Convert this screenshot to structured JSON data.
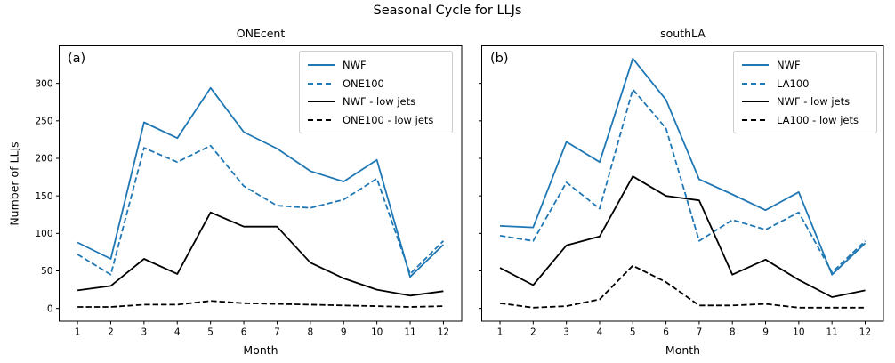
{
  "figure": {
    "title": "Seasonal Cycle for LLJs",
    "xlabel": "Month",
    "ylabel": "Number of LLJs"
  },
  "chart_data": [
    {
      "type": "line",
      "title": "ONEcent",
      "panel_label": "(a)",
      "xlabel": "Month",
      "ylabel": "Number of LLJs",
      "x": [
        1,
        2,
        3,
        4,
        5,
        6,
        7,
        8,
        9,
        10,
        11,
        12
      ],
      "xticks": [
        1,
        2,
        3,
        4,
        5,
        6,
        7,
        8,
        9,
        10,
        11,
        12
      ],
      "yticks": [
        0,
        50,
        100,
        150,
        200,
        250,
        300
      ],
      "xlim": [
        0.45,
        12.55
      ],
      "ylim": [
        -17,
        350
      ],
      "grid": false,
      "legend_position": "upper right",
      "series": [
        {
          "name": "NWF",
          "color": "#1f77b4",
          "style": "solid",
          "values": [
            88,
            66,
            248,
            227,
            294,
            235,
            213,
            183,
            169,
            198,
            42,
            85
          ]
        },
        {
          "name": "ONE100",
          "color": "#1f77b4",
          "style": "dashed",
          "values": [
            72,
            45,
            214,
            195,
            217,
            163,
            137,
            134,
            145,
            173,
            46,
            90
          ]
        },
        {
          "name": "NWF - low jets",
          "color": "#000000",
          "style": "solid",
          "values": [
            24,
            30,
            66,
            46,
            128,
            109,
            109,
            61,
            40,
            25,
            17,
            23
          ]
        },
        {
          "name": "ONE100 - low jets",
          "color": "#000000",
          "style": "dashed",
          "values": [
            2,
            2,
            5,
            5,
            10,
            7,
            6,
            5,
            4,
            3,
            2,
            3
          ]
        }
      ]
    },
    {
      "type": "line",
      "title": "southLA",
      "panel_label": "(b)",
      "xlabel": "Month",
      "ylabel": "",
      "x": [
        1,
        2,
        3,
        4,
        5,
        6,
        7,
        8,
        9,
        10,
        11,
        12
      ],
      "xticks": [
        1,
        2,
        3,
        4,
        5,
        6,
        7,
        8,
        9,
        10,
        11,
        12
      ],
      "yticks": [
        0,
        50,
        100,
        150,
        200,
        250,
        300
      ],
      "xlim": [
        0.45,
        12.55
      ],
      "ylim": [
        -17,
        350
      ],
      "grid": false,
      "legend_position": "upper right",
      "series": [
        {
          "name": "NWF",
          "color": "#1f77b4",
          "style": "solid",
          "values": [
            110,
            108,
            222,
            195,
            333,
            278,
            172,
            152,
            131,
            155,
            45,
            87
          ]
        },
        {
          "name": "LA100",
          "color": "#1f77b4",
          "style": "dashed",
          "values": [
            97,
            90,
            168,
            133,
            292,
            240,
            90,
            118,
            105,
            128,
            48,
            90
          ]
        },
        {
          "name": "NWF - low jets",
          "color": "#000000",
          "style": "solid",
          "values": [
            54,
            31,
            84,
            96,
            176,
            150,
            144,
            45,
            65,
            38,
            15,
            24
          ]
        },
        {
          "name": "LA100 - low jets",
          "color": "#000000",
          "style": "dashed",
          "values": [
            7,
            1,
            3,
            12,
            57,
            35,
            4,
            4,
            6,
            1,
            1,
            1
          ]
        }
      ]
    }
  ]
}
